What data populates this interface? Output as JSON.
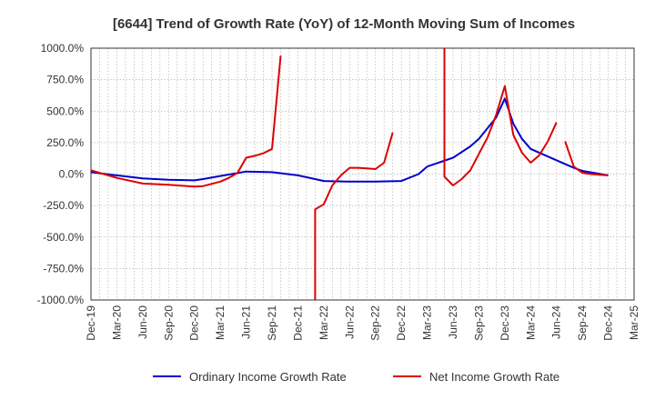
{
  "chart_data": {
    "type": "line",
    "title": "[6644]  Trend of Growth Rate (YoY) of 12-Month Moving Sum of Incomes",
    "xlabel": "",
    "ylabel": "",
    "ylim": [
      -1000,
      1000
    ],
    "yticks": [
      1000,
      750,
      500,
      250,
      0,
      -250,
      -500,
      -750,
      -1000
    ],
    "ytick_labels": [
      "1000.0%",
      "750.0%",
      "500.0%",
      "250.0%",
      "0.0%",
      "-250.0%",
      "-500.0%",
      "-750.0%",
      "-1000.0%"
    ],
    "x_tick_labels": [
      "Dec-19",
      "Mar-20",
      "Jun-20",
      "Sep-20",
      "Dec-20",
      "Mar-21",
      "Jun-21",
      "Sep-21",
      "Dec-21",
      "Mar-22",
      "Jun-22",
      "Sep-22",
      "Dec-22",
      "Mar-23",
      "Jun-23",
      "Sep-23",
      "Dec-23",
      "Mar-24",
      "Jun-24",
      "Sep-24",
      "Dec-24",
      "Mar-25"
    ],
    "x_start": "Dec-19",
    "x_end": "Mar-25",
    "grid": true,
    "legend_position": "bottom",
    "series": [
      {
        "name": "Ordinary Income Growth Rate",
        "color": "#0000cc",
        "points": [
          [
            "Dec-19",
            15
          ],
          [
            "Mar-20",
            -10
          ],
          [
            "Jun-20",
            -35
          ],
          [
            "Sep-20",
            -45
          ],
          [
            "Dec-20",
            -50
          ],
          [
            "Jan-21",
            -40
          ],
          [
            "Mar-21",
            -15
          ],
          [
            "Jun-21",
            20
          ],
          [
            "Sep-21",
            15
          ],
          [
            "Dec-21",
            -10
          ],
          [
            "Feb-22",
            -40
          ],
          [
            "Mar-22",
            -55
          ],
          [
            "Jun-22",
            -60
          ],
          [
            "Sep-22",
            -60
          ],
          [
            "Dec-22",
            -55
          ],
          [
            "Feb-23",
            0
          ],
          [
            "Mar-23",
            60
          ],
          [
            "Jun-23",
            130
          ],
          [
            "Aug-23",
            220
          ],
          [
            "Sep-23",
            280
          ],
          [
            "Nov-23",
            450
          ],
          [
            "Dec-23",
            600
          ],
          [
            "Jan-24",
            400
          ],
          [
            "Feb-24",
            280
          ],
          [
            "Mar-24",
            200
          ],
          [
            "Jun-24",
            110
          ],
          [
            "Aug-24",
            50
          ],
          [
            "Sep-24",
            25
          ],
          [
            "Dec-24",
            -10
          ]
        ]
      },
      {
        "name": "Net Income Growth Rate",
        "color": "#dd0000",
        "segments": [
          [
            [
              "Dec-19",
              30
            ],
            [
              "Mar-20",
              -30
            ],
            [
              "Jun-20",
              -75
            ],
            [
              "Sep-20",
              -85
            ],
            [
              "Dec-20",
              -100
            ],
            [
              "Jan-21",
              -95
            ],
            [
              "Mar-21",
              -60
            ],
            [
              "Apr-21",
              -30
            ],
            [
              "May-21",
              10
            ],
            [
              "Jun-21",
              130
            ],
            [
              "Jul-21",
              145
            ],
            [
              "Aug-21",
              165
            ],
            [
              "Sep-21",
              200
            ],
            [
              "Oct-21",
              940
            ]
          ],
          [
            [
              "Feb-22",
              -1000
            ],
            [
              "Feb-22",
              -280
            ],
            [
              "Mar-22",
              -240
            ],
            [
              "Apr-22",
              -90
            ],
            [
              "May-22",
              -10
            ],
            [
              "Jun-22",
              50
            ],
            [
              "Jul-22",
              50
            ],
            [
              "Aug-22",
              45
            ],
            [
              "Sep-22",
              40
            ],
            [
              "Oct-22",
              90
            ],
            [
              "Nov-22",
              330
            ]
          ],
          [
            [
              "May-23",
              1000
            ],
            [
              "May-23",
              -20
            ],
            [
              "Jun-23",
              -90
            ],
            [
              "Jul-23",
              -40
            ],
            [
              "Aug-23",
              30
            ],
            [
              "Sep-23",
              160
            ],
            [
              "Oct-23",
              290
            ],
            [
              "Nov-23",
              470
            ],
            [
              "Dec-23",
              700
            ],
            [
              "Jan-24",
              310
            ],
            [
              "Feb-24",
              170
            ],
            [
              "Mar-24",
              90
            ],
            [
              "Apr-24",
              150
            ],
            [
              "May-24",
              260
            ],
            [
              "Jun-24",
              410
            ]
          ],
          [
            [
              "Jul-24",
              260
            ],
            [
              "Aug-24",
              60
            ],
            [
              "Sep-24",
              10
            ],
            [
              "Oct-24",
              0
            ],
            [
              "Nov-24",
              -5
            ],
            [
              "Dec-24",
              -10
            ]
          ]
        ]
      }
    ]
  }
}
